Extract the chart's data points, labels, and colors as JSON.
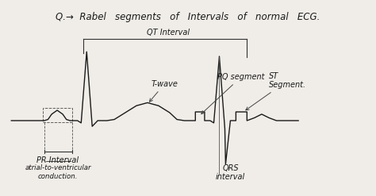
{
  "title": "Q.→  Rabel   segments   of   Intervals   of   normal   ECG.",
  "bg_color": "#f0ede8",
  "ecg_color": "#1a1a1a",
  "text_color": "#1a1a1a",
  "title_fontsize": 8.5,
  "label_fontsize": 7.0,
  "small_fontsize": 6.2,
  "figsize": [
    4.74,
    2.47
  ],
  "dpi": 100,
  "xlim": [
    0,
    100
  ],
  "ylim": [
    -3.2,
    5.0
  ]
}
